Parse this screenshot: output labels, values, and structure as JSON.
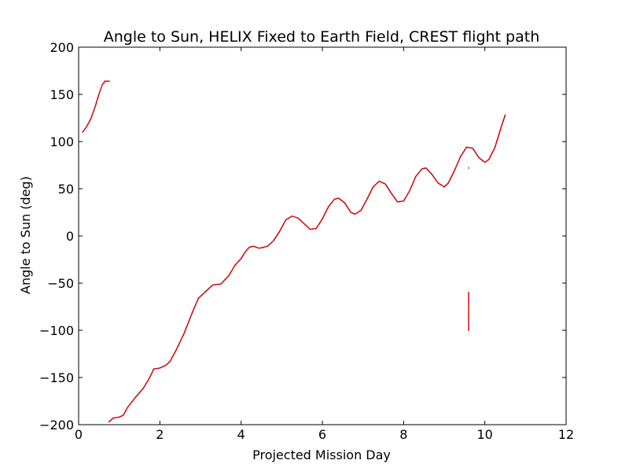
{
  "chart_data": {
    "type": "scatter",
    "title": "Angle to Sun, HELIX Fixed to Earth Field, CREST flight path",
    "xlabel": "Projected Mission Day",
    "ylabel": "Angle to Sun (deg)",
    "xlim": [
      0,
      12
    ],
    "ylim": [
      -200,
      200
    ],
    "xticks": [
      0,
      2,
      4,
      6,
      8,
      10,
      12
    ],
    "xtick_labels": [
      "0",
      "2",
      "4",
      "6",
      "8",
      "10",
      "12"
    ],
    "yticks": [
      -200,
      -150,
      -100,
      -50,
      0,
      50,
      100,
      150,
      200
    ],
    "ytick_labels": [
      "−200",
      "−150",
      "−100",
      "−50",
      "0",
      "50",
      "100",
      "150",
      "200"
    ],
    "grid": false,
    "legend": "none",
    "marker_color": "#cc0000",
    "series": [
      {
        "points": [
          [
            0.1,
            110
          ],
          [
            0.2,
            116
          ],
          [
            0.3,
            124
          ],
          [
            0.4,
            136
          ],
          [
            0.5,
            150
          ],
          [
            0.58,
            160
          ],
          [
            0.65,
            164
          ],
          [
            0.75,
            164
          ],
          [
            0.75,
            -197
          ],
          [
            0.85,
            -193
          ],
          [
            1.0,
            -192
          ],
          [
            1.1,
            -190
          ],
          [
            1.2,
            -182
          ],
          [
            1.4,
            -171
          ],
          [
            1.6,
            -161
          ],
          [
            1.75,
            -150
          ],
          [
            1.85,
            -141
          ],
          [
            2.0,
            -140
          ],
          [
            2.15,
            -137
          ],
          [
            2.25,
            -133
          ],
          [
            2.4,
            -121
          ],
          [
            2.6,
            -103
          ],
          [
            2.8,
            -81
          ],
          [
            2.95,
            -66
          ],
          [
            3.1,
            -60
          ],
          [
            3.2,
            -56
          ],
          [
            3.3,
            -52
          ],
          [
            3.5,
            -51
          ],
          [
            3.7,
            -42
          ],
          [
            3.85,
            -31
          ],
          [
            4.0,
            -24
          ],
          [
            4.1,
            -17
          ],
          [
            4.2,
            -12
          ],
          [
            4.3,
            -11
          ],
          [
            4.45,
            -13
          ],
          [
            4.65,
            -11
          ],
          [
            4.8,
            -5
          ],
          [
            4.95,
            5
          ],
          [
            5.1,
            17
          ],
          [
            5.25,
            21
          ],
          [
            5.4,
            19
          ],
          [
            5.55,
            13
          ],
          [
            5.7,
            7
          ],
          [
            5.85,
            8
          ],
          [
            6.0,
            18
          ],
          [
            6.15,
            31
          ],
          [
            6.3,
            39
          ],
          [
            6.4,
            40
          ],
          [
            6.55,
            35
          ],
          [
            6.7,
            25
          ],
          [
            6.8,
            23
          ],
          [
            6.95,
            27
          ],
          [
            7.1,
            39
          ],
          [
            7.25,
            52
          ],
          [
            7.4,
            58
          ],
          [
            7.55,
            55
          ],
          [
            7.7,
            45
          ],
          [
            7.85,
            36
          ],
          [
            8.0,
            37
          ],
          [
            8.15,
            48
          ],
          [
            8.3,
            63
          ],
          [
            8.45,
            71
          ],
          [
            8.55,
            72
          ],
          [
            8.7,
            65
          ],
          [
            8.85,
            56
          ],
          [
            9.0,
            52
          ],
          [
            9.1,
            56
          ],
          [
            9.25,
            69
          ],
          [
            9.4,
            84
          ],
          [
            9.55,
            94
          ],
          [
            9.7,
            93
          ],
          [
            9.85,
            83
          ],
          [
            10.0,
            78
          ],
          [
            10.1,
            81
          ],
          [
            10.25,
            94
          ],
          [
            10.4,
            115
          ],
          [
            10.5,
            128
          ],
          [
            9.6,
            72
          ],
          [
            9.6,
            -60
          ],
          [
            9.6,
            -100
          ]
        ]
      }
    ]
  }
}
